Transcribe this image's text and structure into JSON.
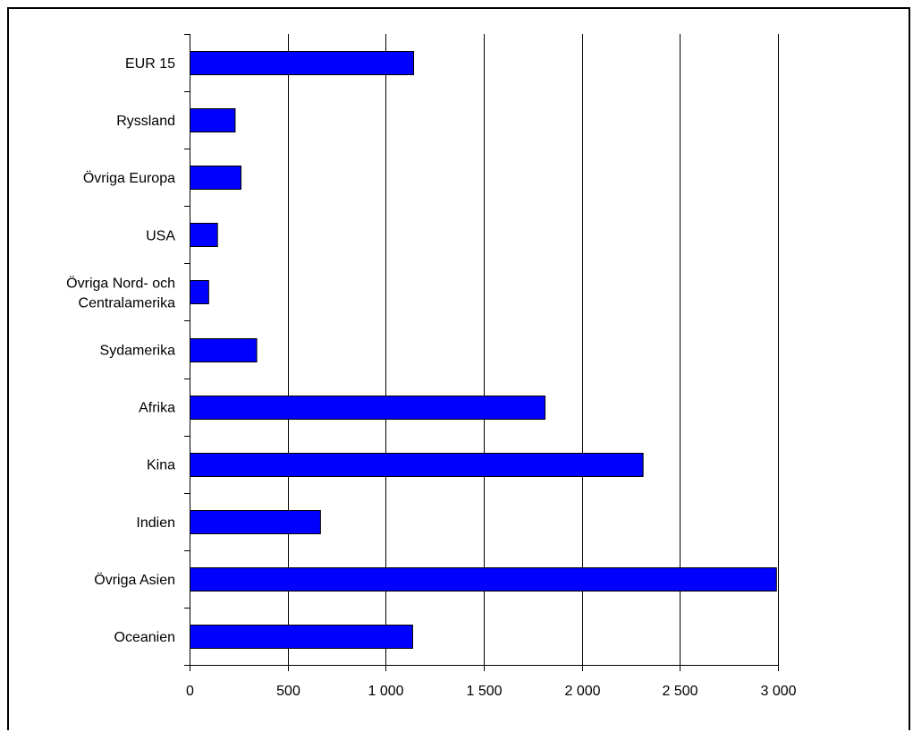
{
  "chart_data": {
    "type": "bar",
    "orientation": "horizontal",
    "categories": [
      [
        "EUR 15"
      ],
      [
        "Ryssland"
      ],
      [
        "Övriga Europa"
      ],
      [
        "USA"
      ],
      [
        "Övriga Nord- och",
        "Centralamerika"
      ],
      [
        "Sydamerika"
      ],
      [
        "Afrika"
      ],
      [
        "Kina"
      ],
      [
        "Indien"
      ],
      [
        "Övriga Asien"
      ],
      [
        "Oceanien"
      ]
    ],
    "values": [
      1140,
      230,
      260,
      140,
      95,
      340,
      1810,
      2310,
      665,
      2990,
      1135
    ],
    "xticks": [
      "0",
      "500",
      "1 000",
      "1 500",
      "2 000",
      "2 500",
      "3 000"
    ],
    "xlim": [
      0,
      3000
    ],
    "grid": "vertical",
    "legend": "none",
    "title": "",
    "xlabel": "",
    "ylabel": "",
    "colors": {
      "bar_fill": "#0000FF",
      "bar_stroke": "#000000",
      "grid": "#000000",
      "axis": "#000000"
    }
  }
}
